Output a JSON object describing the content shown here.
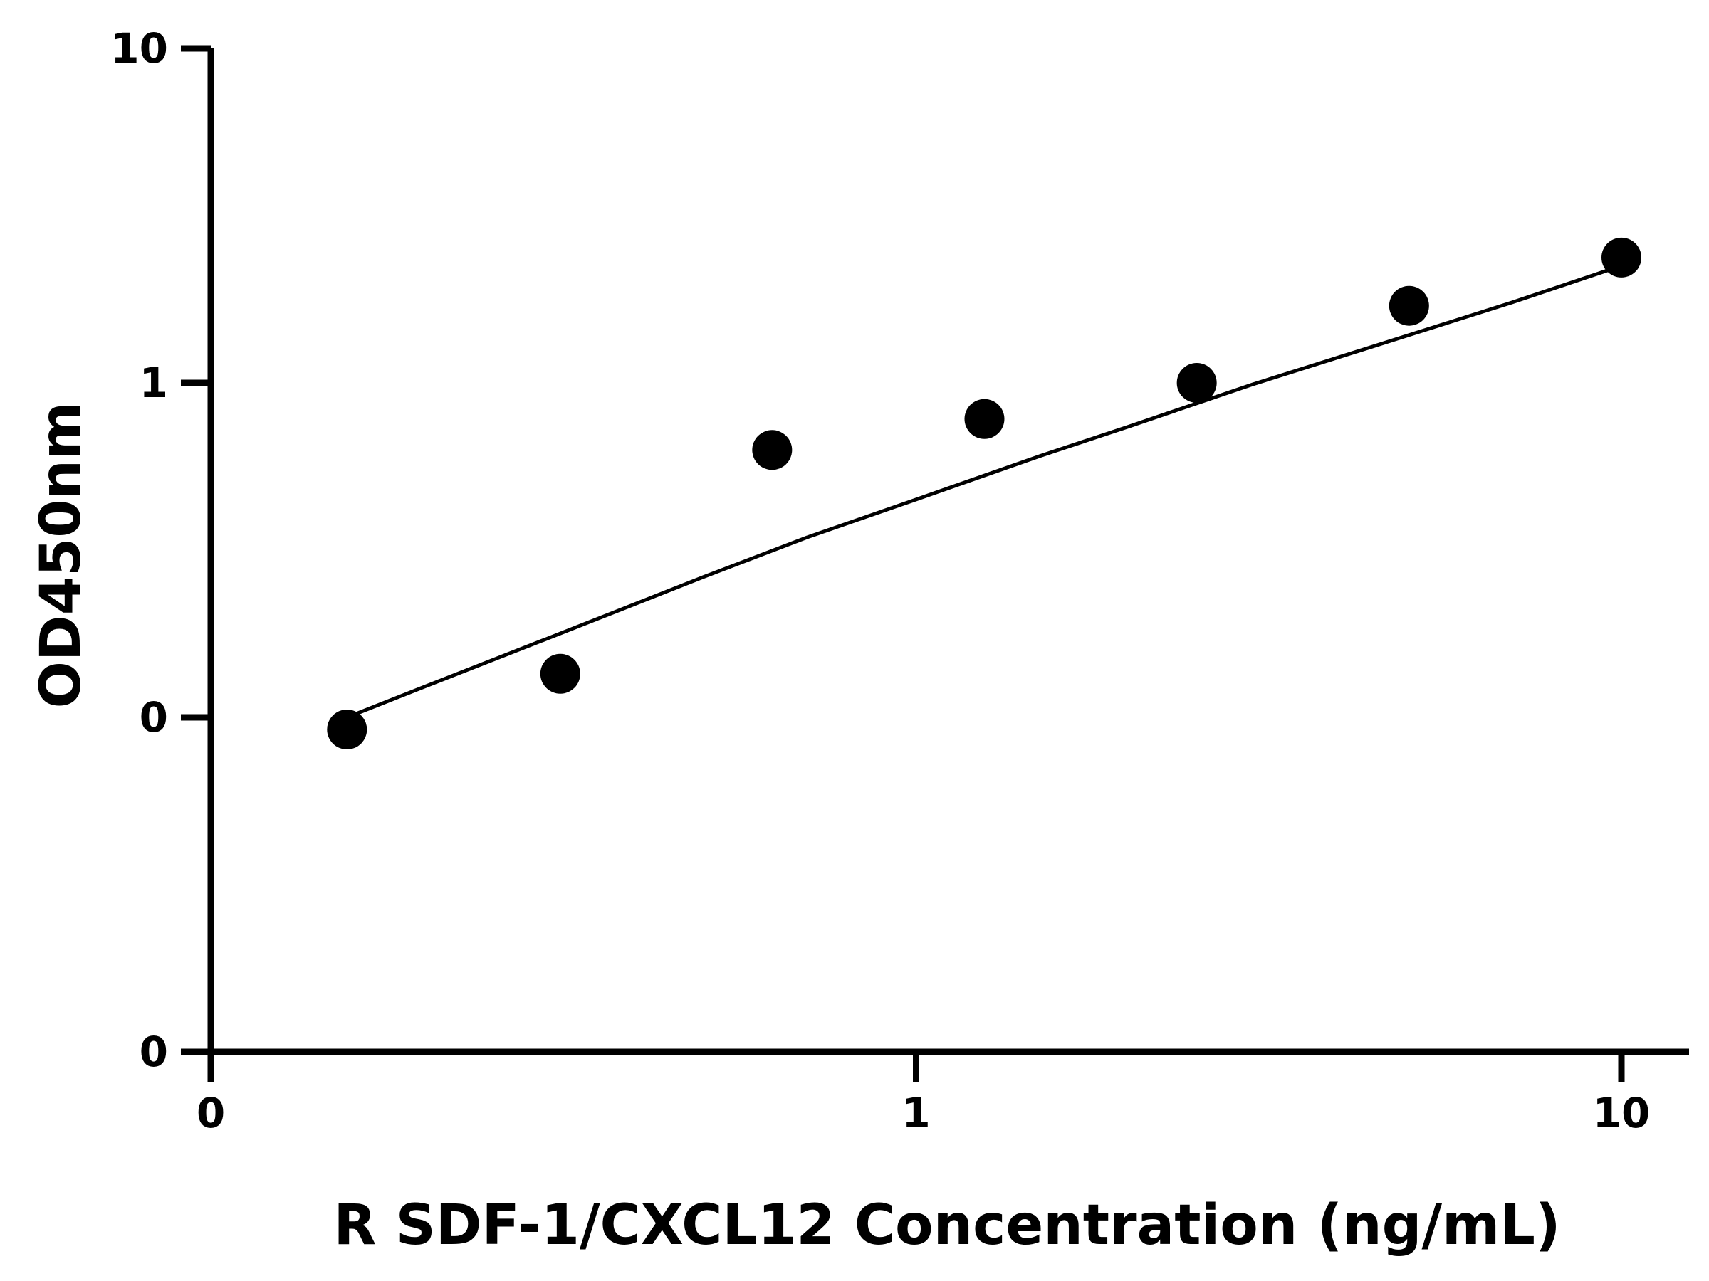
{
  "chart_data": {
    "type": "scatter",
    "title": "",
    "xlabel": "R SDF-1/CXCL12 Concentration (ng/mL)",
    "ylabel": "OD450nm",
    "x_scale": "log",
    "y_scale": "log",
    "x_ticks": [
      {
        "value": 0.1,
        "label": "0"
      },
      {
        "value": 1,
        "label": "1"
      },
      {
        "value": 10,
        "label": "10"
      }
    ],
    "y_ticks": [
      {
        "value": 0.01,
        "label": "0"
      },
      {
        "value": 0.1,
        "label": "0"
      },
      {
        "value": 1,
        "label": "1"
      },
      {
        "value": 10,
        "label": "10"
      }
    ],
    "xlim": [
      0.1,
      12
    ],
    "ylim": [
      0.01,
      10
    ],
    "grid": false,
    "series": [
      {
        "type": "scatter",
        "x": [
          0.156,
          0.313,
          0.625,
          1.25,
          2.5,
          5,
          10
        ],
        "y": [
          0.092,
          0.135,
          0.63,
          0.78,
          1.0,
          1.7,
          2.37
        ],
        "color": "#000000"
      },
      {
        "type": "line",
        "fit": "curve",
        "x": [
          0.156,
          0.2,
          0.3,
          0.5,
          0.7,
          1.0,
          1.5,
          2.0,
          3.0,
          5.0,
          7.0,
          10.0
        ],
        "y": [
          0.1,
          0.123,
          0.172,
          0.263,
          0.345,
          0.448,
          0.605,
          0.74,
          0.99,
          1.39,
          1.74,
          2.24
        ],
        "color": "#000000"
      }
    ]
  }
}
